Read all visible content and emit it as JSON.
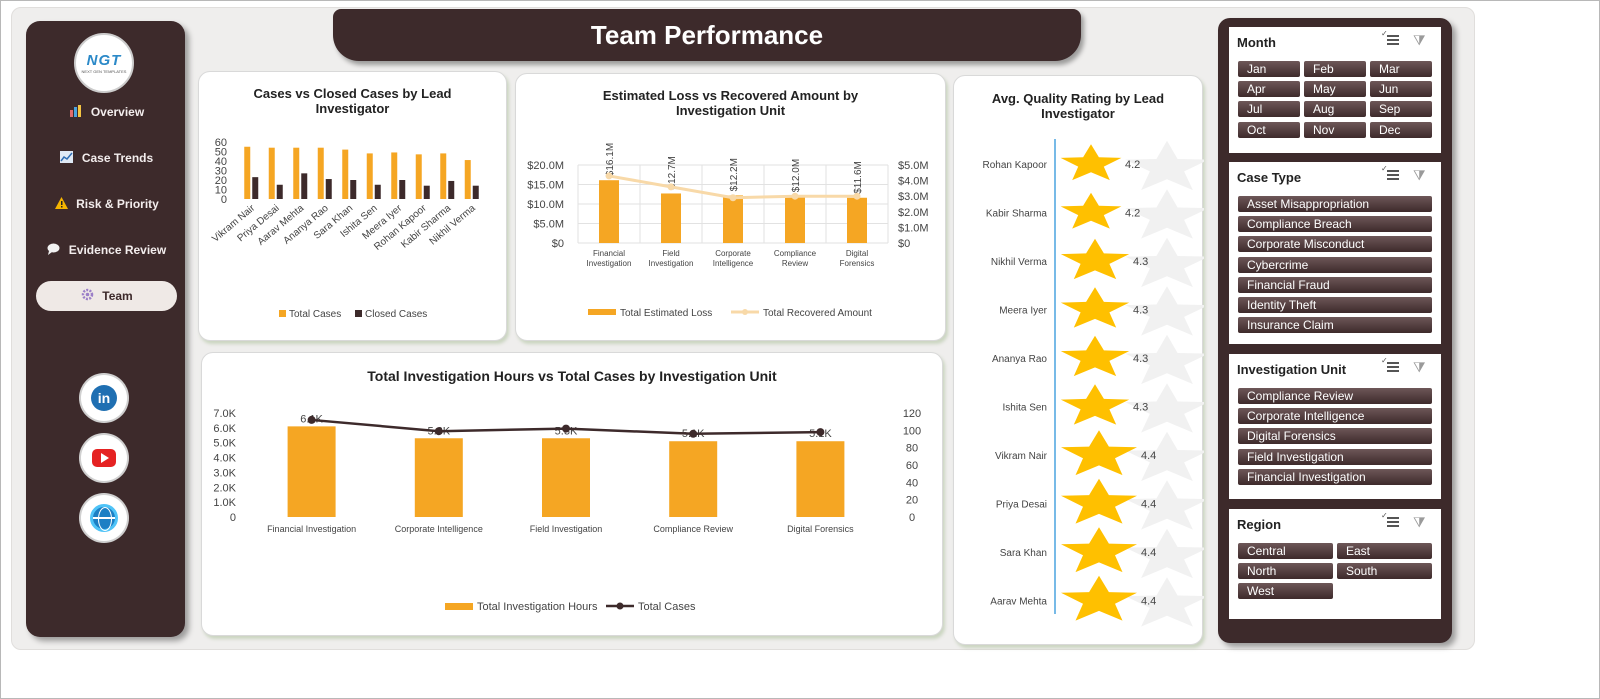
{
  "header": {
    "title": "Team Performance"
  },
  "logo": {
    "mark": "NGT",
    "sub": "NEXT GEN TEMPLATES"
  },
  "nav": {
    "items": [
      {
        "label": "Overview",
        "icon": "bar-chart-icon"
      },
      {
        "label": "Case Trends",
        "icon": "line-chart-icon"
      },
      {
        "label": "Risk & Priority",
        "icon": "warning-icon"
      },
      {
        "label": "Evidence Review",
        "icon": "chat-bubble-icon"
      },
      {
        "label": "Team",
        "icon": "gear-icon"
      }
    ],
    "active": "Team",
    "social": [
      "linkedin-icon",
      "youtube-icon",
      "globe-icon"
    ]
  },
  "colors": {
    "brand_dark": "#3d2a2b",
    "accent_orange": "#f5a623",
    "star_yellow": "#ffc000",
    "line_peach": "#f8d9a8"
  },
  "slicers": [
    {
      "title": "Month",
      "columns": 3,
      "items": [
        "Jan",
        "Feb",
        "Mar",
        "Apr",
        "May",
        "Jun",
        "Jul",
        "Aug",
        "Sep",
        "Oct",
        "Nov",
        "Dec"
      ]
    },
    {
      "title": "Case Type",
      "columns": 1,
      "items": [
        "Asset Misappropriation",
        "Compliance Breach",
        "Corporate Misconduct",
        "Cybercrime",
        "Financial Fraud",
        "Identity Theft",
        "Insurance Claim"
      ]
    },
    {
      "title": "Investigation Unit",
      "columns": 1,
      "items": [
        "Compliance Review",
        "Corporate Intelligence",
        "Digital Forensics",
        "Field Investigation",
        "Financial Investigation"
      ]
    },
    {
      "title": "Region",
      "columns": 2,
      "items": [
        "Central",
        "East",
        "North",
        "South",
        "West"
      ]
    }
  ],
  "chart_data": [
    {
      "type": "bar",
      "title": "Cases vs Closed Cases by Lead Investigator",
      "categories": [
        "Vikram Nair",
        "Priya Desai",
        "Aarav Mehta",
        "Ananya Rao",
        "Sara Khan",
        "Ishita Sen",
        "Meera Iyer",
        "Rohan Kapoor",
        "Kabir Sharma",
        "Nikhil Verma"
      ],
      "series": [
        {
          "name": "Total Cases",
          "values": [
            55,
            54,
            54,
            54,
            52,
            48,
            49,
            47,
            48,
            41
          ],
          "color": "#f5a623"
        },
        {
          "name": "Closed Cases",
          "values": [
            23,
            15,
            27,
            21,
            20,
            15,
            20,
            14,
            19,
            14
          ],
          "color": "#3d2a2b"
        }
      ],
      "y_ticks": [
        "0",
        "10",
        "20",
        "30",
        "40",
        "50",
        "60"
      ],
      "ylim": [
        0,
        60
      ],
      "legend": "bottom"
    },
    {
      "type": "bar",
      "title": "Estimated Loss vs Recovered Amount by Investigation Unit",
      "categories": [
        "Financial Investigation",
        "Field Investigation",
        "Corporate Intelligence",
        "Compliance Review",
        "Digital Forensics"
      ],
      "series": [
        {
          "name": "Total Estimated Loss",
          "values": [
            16.1,
            12.7,
            12.2,
            12.0,
            11.6
          ],
          "labels": [
            "$16.1M",
            "$12.7M",
            "$12.2M",
            "$12.0M",
            "$11.6M"
          ],
          "color": "#f5a623",
          "axis": "left"
        },
        {
          "name": "Total Recovered Amount",
          "values": [
            4.3,
            3.6,
            2.9,
            3.0,
            3.0
          ],
          "color": "#f8d9a8",
          "axis": "right",
          "render": "line"
        }
      ],
      "y_ticks_left": [
        "$0",
        "$5.0M",
        "$10.0M",
        "$15.0M",
        "$20.0M"
      ],
      "y_ticks_right": [
        "$0",
        "$1.0M",
        "$2.0M",
        "$3.0M",
        "$4.0M",
        "$5.0M"
      ],
      "ylim_left": [
        0,
        20
      ],
      "ylim_right": [
        0,
        5
      ],
      "legend": "bottom"
    },
    {
      "type": "bar",
      "title": "Avg. Quality Rating by Lead Investigator",
      "categories": [
        "Rohan Kapoor",
        "Kabir Sharma",
        "Nikhil Verma",
        "Meera Iyer",
        "Ananya Rao",
        "Ishita Sen",
        "Vikram Nair",
        "Priya Desai",
        "Sara Khan",
        "Aarav Mehta"
      ],
      "values": [
        4.2,
        4.2,
        4.3,
        4.3,
        4.3,
        4.3,
        4.4,
        4.4,
        4.4,
        4.4
      ],
      "orientation": "horizontal",
      "marker": "star",
      "color": "#ffc000"
    },
    {
      "type": "bar",
      "title": "Total Investigation Hours vs Total Cases by Investigation Unit",
      "categories": [
        "Financial Investigation",
        "Corporate Intelligence",
        "Field Investigation",
        "Compliance Review",
        "Digital Forensics"
      ],
      "series": [
        {
          "name": "Total Investigation Hours",
          "values": [
            6100,
            5300,
            5300,
            5100,
            5100
          ],
          "labels": [
            "6.1K",
            "5.3K",
            "5.3K",
            "5.1K",
            "5.1K"
          ],
          "color": "#f5a623",
          "axis": "left"
        },
        {
          "name": "Total Cases",
          "values": [
            112,
            99,
            102,
            96,
            98
          ],
          "color": "#3d2a2b",
          "axis": "right",
          "render": "line"
        }
      ],
      "y_ticks_left": [
        "0",
        "1.0K",
        "2.0K",
        "3.0K",
        "4.0K",
        "5.0K",
        "6.0K",
        "7.0K"
      ],
      "y_ticks_right": [
        "0",
        "20",
        "40",
        "60",
        "80",
        "100",
        "120"
      ],
      "ylim_left": [
        0,
        7000
      ],
      "ylim_right": [
        0,
        120
      ],
      "legend": "bottom"
    }
  ]
}
